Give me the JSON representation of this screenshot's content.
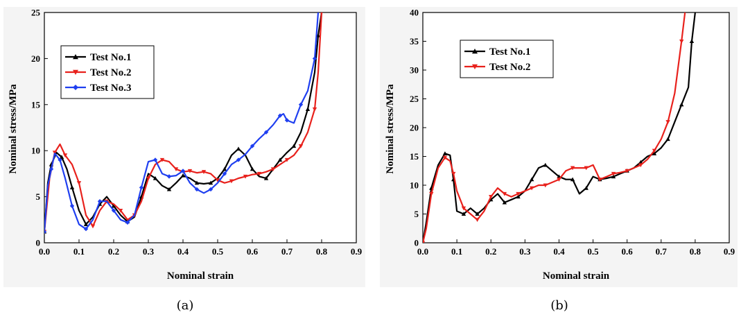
{
  "chart_data": [
    {
      "type": "line",
      "caption": "(a)",
      "xlabel": "Nominal strain",
      "ylabel": "Nominal stress/MPa",
      "xlim": [
        0,
        0.9
      ],
      "ylim": [
        0,
        25
      ],
      "xticks": [
        "0.0",
        "0.1",
        "0.2",
        "0.3",
        "0.4",
        "0.5",
        "0.6",
        "0.7",
        "0.8",
        "0.9"
      ],
      "yticks": [
        "0",
        "5",
        "10",
        "15",
        "20",
        "25"
      ],
      "legend_position": "top-left",
      "series": [
        {
          "name": "Test No.1",
          "color": "#000000",
          "marker": "triangle-up",
          "x": [
            0.0,
            0.01,
            0.02,
            0.035,
            0.05,
            0.065,
            0.08,
            0.1,
            0.12,
            0.14,
            0.16,
            0.18,
            0.2,
            0.22,
            0.24,
            0.26,
            0.28,
            0.3,
            0.32,
            0.34,
            0.36,
            0.38,
            0.4,
            0.42,
            0.44,
            0.46,
            0.48,
            0.5,
            0.52,
            0.54,
            0.56,
            0.58,
            0.6,
            0.62,
            0.64,
            0.66,
            0.68,
            0.7,
            0.72,
            0.74,
            0.76,
            0.78,
            0.79,
            0.8
          ],
          "y": [
            1.2,
            6.5,
            8.5,
            9.8,
            9.3,
            8.0,
            6.0,
            3.5,
            2.0,
            2.8,
            4.2,
            5.0,
            4.0,
            3.0,
            2.3,
            2.8,
            5.0,
            7.5,
            7.0,
            6.2,
            5.8,
            6.5,
            7.3,
            7.0,
            6.5,
            6.4,
            6.5,
            7.0,
            8.0,
            9.5,
            10.2,
            9.5,
            8.0,
            7.2,
            7.0,
            8.0,
            9.0,
            9.8,
            10.5,
            12.0,
            14.5,
            18.5,
            22.5,
            25.0
          ]
        },
        {
          "name": "Test No.2",
          "color": "#e8211c",
          "marker": "triangle-down",
          "x": [
            0.0,
            0.015,
            0.03,
            0.045,
            0.06,
            0.08,
            0.1,
            0.12,
            0.14,
            0.16,
            0.18,
            0.2,
            0.22,
            0.24,
            0.26,
            0.28,
            0.3,
            0.32,
            0.34,
            0.36,
            0.38,
            0.4,
            0.42,
            0.44,
            0.46,
            0.48,
            0.5,
            0.52,
            0.54,
            0.56,
            0.58,
            0.6,
            0.62,
            0.64,
            0.66,
            0.68,
            0.7,
            0.72,
            0.74,
            0.76,
            0.78,
            0.79,
            0.8
          ],
          "y": [
            1.2,
            7.0,
            9.8,
            10.7,
            9.5,
            8.5,
            6.5,
            3.0,
            1.8,
            3.5,
            4.5,
            4.2,
            3.5,
            2.5,
            3.0,
            4.5,
            7.0,
            8.5,
            9.0,
            8.8,
            8.0,
            7.7,
            7.8,
            7.6,
            7.7,
            7.5,
            6.8,
            6.5,
            6.7,
            7.0,
            7.2,
            7.4,
            7.5,
            7.7,
            8.0,
            8.5,
            9.0,
            9.5,
            10.5,
            12.0,
            14.5,
            18.5,
            25.0
          ]
        },
        {
          "name": "Test No.3",
          "color": "#1f3ff0",
          "marker": "diamond",
          "x": [
            0.0,
            0.01,
            0.02,
            0.03,
            0.045,
            0.06,
            0.08,
            0.1,
            0.12,
            0.14,
            0.16,
            0.18,
            0.2,
            0.22,
            0.24,
            0.26,
            0.28,
            0.3,
            0.32,
            0.34,
            0.36,
            0.38,
            0.4,
            0.42,
            0.44,
            0.46,
            0.48,
            0.5,
            0.52,
            0.54,
            0.56,
            0.58,
            0.6,
            0.62,
            0.64,
            0.66,
            0.68,
            0.69,
            0.7,
            0.72,
            0.74,
            0.76,
            0.78,
            0.79
          ],
          "y": [
            1.2,
            6.2,
            8.0,
            9.7,
            9.0,
            7.0,
            4.0,
            2.0,
            1.5,
            2.5,
            4.5,
            4.5,
            3.5,
            2.5,
            2.2,
            3.0,
            6.0,
            8.8,
            9.0,
            7.5,
            7.2,
            7.3,
            7.8,
            6.5,
            5.8,
            5.4,
            5.8,
            6.5,
            7.5,
            8.5,
            9.0,
            9.6,
            10.5,
            11.3,
            12.0,
            12.8,
            13.8,
            14.0,
            13.3,
            13.0,
            15.0,
            16.5,
            20.0,
            25.0
          ]
        }
      ]
    },
    {
      "type": "line",
      "caption": "(b)",
      "xlabel": "Nominal strain",
      "ylabel": "Nominal stress/MPa",
      "xlim": [
        0,
        0.9
      ],
      "ylim": [
        0,
        40
      ],
      "xticks": [
        "0.0",
        "0.1",
        "0.2",
        "0.3",
        "0.4",
        "0.5",
        "0.6",
        "0.7",
        "0.8",
        "0.9"
      ],
      "yticks": [
        "0",
        "5",
        "10",
        "15",
        "20",
        "25",
        "30",
        "35",
        "40"
      ],
      "legend_position": "top-left",
      "series": [
        {
          "name": "Test No.1",
          "color": "#000000",
          "marker": "triangle-up",
          "x": [
            0.0,
            0.01,
            0.025,
            0.045,
            0.065,
            0.08,
            0.09,
            0.1,
            0.12,
            0.14,
            0.16,
            0.18,
            0.2,
            0.22,
            0.24,
            0.26,
            0.28,
            0.3,
            0.32,
            0.34,
            0.36,
            0.38,
            0.4,
            0.42,
            0.44,
            0.46,
            0.48,
            0.5,
            0.52,
            0.54,
            0.56,
            0.58,
            0.6,
            0.62,
            0.64,
            0.66,
            0.68,
            0.7,
            0.72,
            0.74,
            0.76,
            0.78,
            0.79,
            0.8
          ],
          "y": [
            0.0,
            3.5,
            9.5,
            13.5,
            15.5,
            15.2,
            11.0,
            5.5,
            5.0,
            6.0,
            5.0,
            6.0,
            7.5,
            8.5,
            7.0,
            7.5,
            8.0,
            9.0,
            11.0,
            13.0,
            13.5,
            12.5,
            11.5,
            11.0,
            11.0,
            8.5,
            9.5,
            11.5,
            11.0,
            11.2,
            11.5,
            12.0,
            12.5,
            13.0,
            14.0,
            15.0,
            15.5,
            16.5,
            18.0,
            21.0,
            24.0,
            27.0,
            35.0,
            40.0
          ]
        },
        {
          "name": "Test No.2",
          "color": "#e8211c",
          "marker": "triangle-down",
          "x": [
            0.0,
            0.01,
            0.025,
            0.045,
            0.065,
            0.08,
            0.09,
            0.1,
            0.12,
            0.14,
            0.16,
            0.18,
            0.2,
            0.22,
            0.24,
            0.26,
            0.28,
            0.3,
            0.32,
            0.34,
            0.36,
            0.38,
            0.4,
            0.42,
            0.44,
            0.46,
            0.48,
            0.5,
            0.52,
            0.54,
            0.56,
            0.58,
            0.6,
            0.62,
            0.64,
            0.66,
            0.68,
            0.7,
            0.72,
            0.74,
            0.76,
            0.77
          ],
          "y": [
            0.0,
            2.5,
            8.5,
            13.0,
            14.8,
            14.2,
            12.0,
            9.0,
            6.0,
            5.0,
            4.0,
            5.5,
            8.0,
            9.5,
            8.5,
            8.0,
            8.5,
            9.0,
            9.5,
            10.0,
            10.0,
            10.5,
            11.0,
            12.5,
            13.0,
            13.0,
            13.0,
            13.5,
            11.0,
            11.5,
            12.0,
            12.2,
            12.5,
            13.0,
            13.5,
            14.5,
            16.0,
            18.0,
            21.0,
            26.0,
            35.0,
            40.0
          ]
        }
      ]
    }
  ]
}
